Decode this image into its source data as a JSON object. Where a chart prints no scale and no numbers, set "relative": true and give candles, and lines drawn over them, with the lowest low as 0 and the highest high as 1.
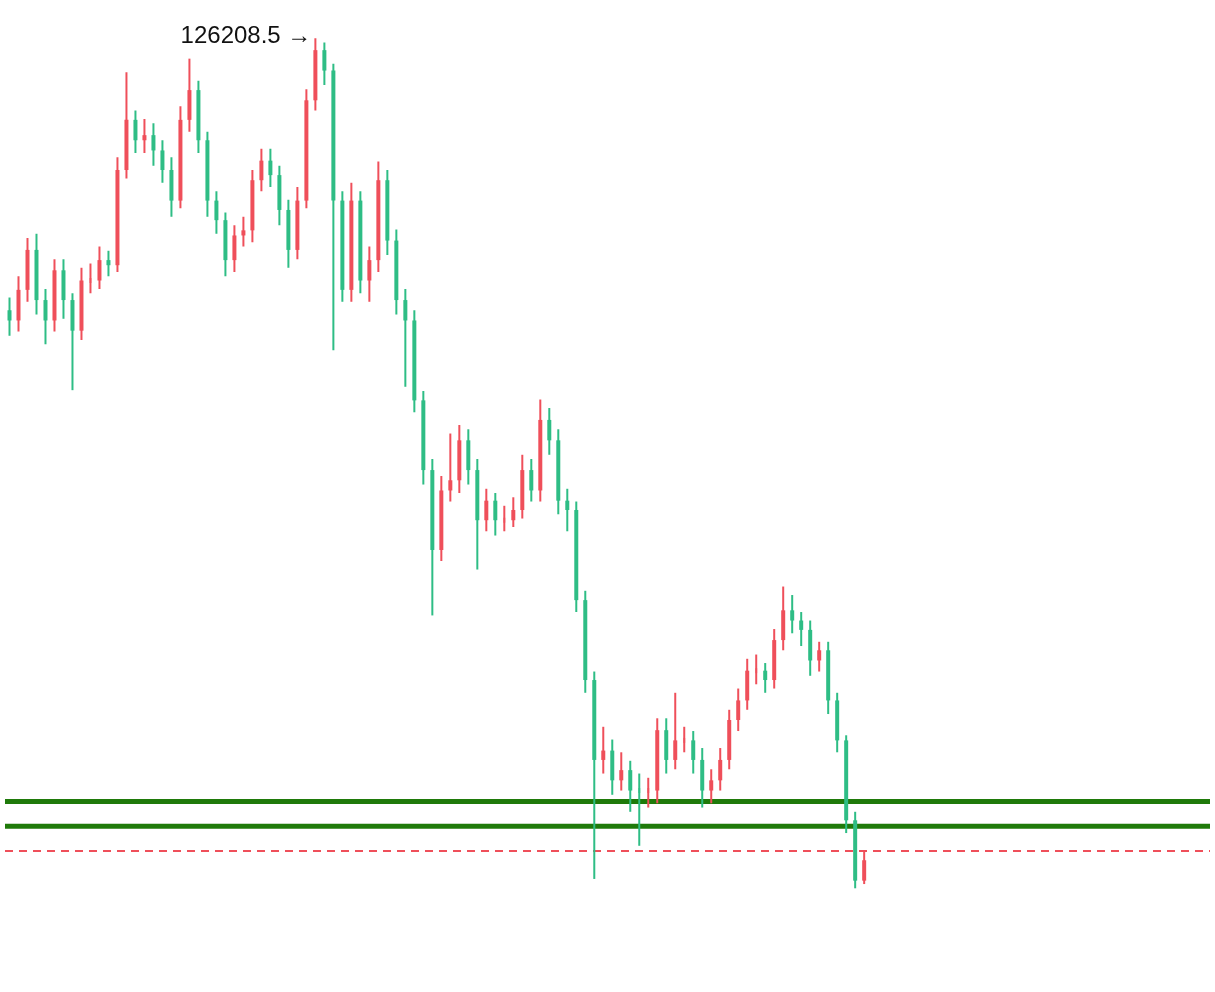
{
  "chart_data": {
    "type": "candlestick",
    "relative": true,
    "categories": [
      null,
      null,
      null,
      null,
      null,
      null,
      null,
      null,
      null,
      null,
      null,
      null,
      null,
      null,
      null,
      null,
      null,
      null,
      null,
      null,
      null,
      null,
      null,
      null,
      null,
      null,
      null,
      null,
      null,
      null,
      null,
      null,
      null,
      null,
      null,
      null,
      null,
      null,
      null,
      null,
      null,
      null,
      null,
      null,
      null,
      null,
      null,
      null,
      null,
      null,
      null,
      null,
      null,
      null,
      null,
      null,
      null,
      null,
      null,
      null,
      null,
      null,
      null,
      null,
      null,
      null,
      null,
      null,
      null,
      null,
      null,
      null,
      null,
      null,
      null,
      null,
      null,
      null,
      null,
      null,
      null,
      null,
      null,
      null,
      null,
      null,
      null,
      null,
      null,
      null,
      null,
      null,
      null,
      null,
      null,
      null
    ],
    "colors": [
      "#2ebd85",
      "#ef4f5a",
      "#ef4f5a",
      "#2ebd85",
      "#2ebd85",
      "#ef4f5a",
      "#2ebd85",
      "#2ebd85",
      "#ef4f5a",
      "#ef4f5a",
      "#ef4f5a",
      "#2ebd85",
      "#ef4f5a",
      "#ef4f5a",
      "#2ebd85",
      "#ef4f5a",
      "#2ebd85",
      "#2ebd85",
      "#2ebd85",
      "#ef4f5a",
      "#ef4f5a",
      "#2ebd85",
      "#2ebd85",
      "#2ebd85",
      "#2ebd85",
      "#ef4f5a",
      "#ef4f5a",
      "#ef4f5a",
      "#ef4f5a",
      "#2ebd85",
      "#2ebd85",
      "#2ebd85",
      "#ef4f5a",
      "#ef4f5a",
      "#ef4f5a",
      "#2ebd85",
      "#2ebd85",
      "#2ebd85",
      "#ef4f5a",
      "#2ebd85",
      "#ef4f5a",
      "#ef4f5a",
      "#2ebd85",
      "#2ebd85",
      "#2ebd85",
      "#2ebd85",
      "#2ebd85",
      "#2ebd85",
      "#ef4f5a",
      "#ef4f5a",
      "#ef4f5a",
      "#2ebd85",
      "#2ebd85",
      "#ef4f5a",
      "#2ebd85",
      "#ef4f5a",
      "#ef4f5a",
      "#ef4f5a",
      "#2ebd85",
      "#ef4f5a",
      "#2ebd85",
      "#2ebd85",
      "#2ebd85",
      "#2ebd85",
      "#2ebd85",
      "#2ebd85",
      "#ef4f5a",
      "#2ebd85",
      "#ef4f5a",
      "#2ebd85",
      "#2ebd85",
      "#ef4f5a",
      "#ef4f5a",
      "#2ebd85",
      "#ef4f5a",
      "#ef4f5a",
      "#2ebd85",
      "#2ebd85",
      "#ef4f5a",
      "#ef4f5a",
      "#ef4f5a",
      "#ef4f5a",
      "#ef4f5a",
      "#ef4f5a",
      "#2ebd85",
      "#ef4f5a",
      "#ef4f5a",
      "#2ebd85",
      "#2ebd85",
      "#2ebd85",
      "#ef4f5a",
      "#2ebd85",
      "#2ebd85",
      "#2ebd85",
      "#2ebd85",
      "#ef4f5a"
    ],
    "ohlc": [
      [
        0.68,
        0.695,
        0.65,
        0.668
      ],
      [
        0.668,
        0.72,
        0.655,
        0.704
      ],
      [
        0.704,
        0.765,
        0.69,
        0.751
      ],
      [
        0.751,
        0.77,
        0.675,
        0.692
      ],
      [
        0.692,
        0.705,
        0.64,
        0.668
      ],
      [
        0.668,
        0.74,
        0.655,
        0.727
      ],
      [
        0.727,
        0.74,
        0.67,
        0.692
      ],
      [
        0.692,
        0.7,
        0.586,
        0.656
      ],
      [
        0.656,
        0.73,
        0.645,
        0.715
      ],
      [
        0.715,
        0.735,
        0.7,
        0.715
      ],
      [
        0.715,
        0.755,
        0.705,
        0.739
      ],
      [
        0.739,
        0.75,
        0.72,
        0.733
      ],
      [
        0.733,
        0.86,
        0.725,
        0.845
      ],
      [
        0.845,
        0.96,
        0.835,
        0.904
      ],
      [
        0.904,
        0.915,
        0.865,
        0.88
      ],
      [
        0.88,
        0.905,
        0.865,
        0.886
      ],
      [
        0.886,
        0.9,
        0.85,
        0.868
      ],
      [
        0.868,
        0.88,
        0.83,
        0.845
      ],
      [
        0.845,
        0.86,
        0.79,
        0.809
      ],
      [
        0.809,
        0.92,
        0.8,
        0.904
      ],
      [
        0.904,
        0.976,
        0.89,
        0.939
      ],
      [
        0.939,
        0.95,
        0.865,
        0.88
      ],
      [
        0.88,
        0.89,
        0.79,
        0.809
      ],
      [
        0.809,
        0.82,
        0.77,
        0.786
      ],
      [
        0.786,
        0.795,
        0.72,
        0.739
      ],
      [
        0.739,
        0.78,
        0.725,
        0.768
      ],
      [
        0.768,
        0.79,
        0.755,
        0.774
      ],
      [
        0.774,
        0.845,
        0.76,
        0.833
      ],
      [
        0.833,
        0.87,
        0.82,
        0.856
      ],
      [
        0.856,
        0.87,
        0.825,
        0.839
      ],
      [
        0.839,
        0.85,
        0.78,
        0.798
      ],
      [
        0.798,
        0.81,
        0.73,
        0.751
      ],
      [
        0.751,
        0.825,
        0.74,
        0.809
      ],
      [
        0.809,
        0.94,
        0.8,
        0.927
      ],
      [
        0.927,
        1.0,
        0.915,
        0.986
      ],
      [
        0.986,
        0.995,
        0.945,
        0.962
      ],
      [
        0.962,
        0.97,
        0.633,
        0.809
      ],
      [
        0.809,
        0.82,
        0.69,
        0.704
      ],
      [
        0.704,
        0.83,
        0.69,
        0.809
      ],
      [
        0.809,
        0.82,
        0.7,
        0.715
      ],
      [
        0.715,
        0.755,
        0.69,
        0.739
      ],
      [
        0.739,
        0.855,
        0.725,
        0.833
      ],
      [
        0.833,
        0.845,
        0.745,
        0.762
      ],
      [
        0.762,
        0.775,
        0.675,
        0.692
      ],
      [
        0.692,
        0.705,
        0.59,
        0.668
      ],
      [
        0.668,
        0.68,
        0.56,
        0.574
      ],
      [
        0.574,
        0.585,
        0.475,
        0.492
      ],
      [
        0.492,
        0.505,
        0.321,
        0.398
      ],
      [
        0.398,
        0.485,
        0.385,
        0.468
      ],
      [
        0.468,
        0.535,
        0.455,
        0.48
      ],
      [
        0.48,
        0.545,
        0.465,
        0.527
      ],
      [
        0.527,
        0.54,
        0.475,
        0.492
      ],
      [
        0.492,
        0.505,
        0.375,
        0.433
      ],
      [
        0.433,
        0.47,
        0.42,
        0.456
      ],
      [
        0.456,
        0.465,
        0.415,
        0.433
      ],
      [
        0.433,
        0.45,
        0.42,
        0.433
      ],
      [
        0.433,
        0.46,
        0.425,
        0.445
      ],
      [
        0.445,
        0.51,
        0.435,
        0.492
      ],
      [
        0.492,
        0.505,
        0.455,
        0.468
      ],
      [
        0.468,
        0.575,
        0.455,
        0.551
      ],
      [
        0.551,
        0.565,
        0.51,
        0.527
      ],
      [
        0.527,
        0.54,
        0.44,
        0.456
      ],
      [
        0.456,
        0.47,
        0.42,
        0.445
      ],
      [
        0.445,
        0.455,
        0.325,
        0.339
      ],
      [
        0.339,
        0.35,
        0.23,
        0.245
      ],
      [
        0.245,
        0.255,
        0.011,
        0.151
      ],
      [
        0.151,
        0.19,
        0.135,
        0.162
      ],
      [
        0.162,
        0.175,
        0.11,
        0.127
      ],
      [
        0.127,
        0.16,
        0.115,
        0.139
      ],
      [
        0.139,
        0.15,
        0.09,
        0.115
      ],
      [
        0.115,
        0.135,
        0.05,
        0.115
      ],
      [
        0.115,
        0.13,
        0.095,
        0.115
      ],
      [
        0.115,
        0.2,
        0.1,
        0.186
      ],
      [
        0.186,
        0.2,
        0.135,
        0.151
      ],
      [
        0.151,
        0.23,
        0.14,
        0.174
      ],
      [
        0.174,
        0.19,
        0.16,
        0.174
      ],
      [
        0.174,
        0.185,
        0.135,
        0.151
      ],
      [
        0.151,
        0.165,
        0.095,
        0.115
      ],
      [
        0.115,
        0.14,
        0.1,
        0.127
      ],
      [
        0.127,
        0.165,
        0.115,
        0.151
      ],
      [
        0.151,
        0.21,
        0.14,
        0.198
      ],
      [
        0.198,
        0.235,
        0.185,
        0.221
      ],
      [
        0.221,
        0.27,
        0.21,
        0.256
      ],
      [
        0.256,
        0.275,
        0.24,
        0.256
      ],
      [
        0.256,
        0.265,
        0.23,
        0.245
      ],
      [
        0.245,
        0.305,
        0.235,
        0.292
      ],
      [
        0.292,
        0.355,
        0.28,
        0.327
      ],
      [
        0.327,
        0.345,
        0.3,
        0.315
      ],
      [
        0.315,
        0.325,
        0.285,
        0.304
      ],
      [
        0.304,
        0.315,
        0.25,
        0.268
      ],
      [
        0.268,
        0.29,
        0.255,
        0.28
      ],
      [
        0.28,
        0.29,
        0.205,
        0.221
      ],
      [
        0.221,
        0.23,
        0.16,
        0.174
      ],
      [
        0.174,
        0.18,
        0.065,
        0.08
      ],
      [
        0.08,
        0.09,
        0.0,
        0.009
      ],
      [
        0.009,
        0.045,
        0.005,
        0.033
      ]
    ],
    "ref_lines": [
      {
        "axis": "y",
        "value": 0.102,
        "color": "#1f7a0a",
        "line_style": "solid"
      },
      {
        "axis": "y",
        "value": 0.073,
        "color": "#1f7a0a",
        "line_style": "solid"
      },
      {
        "axis": "y",
        "value": 0.044,
        "color": "#ef4f5a",
        "line_style": "dashed"
      }
    ],
    "annotations": [
      "126208.5 →"
    ]
  }
}
